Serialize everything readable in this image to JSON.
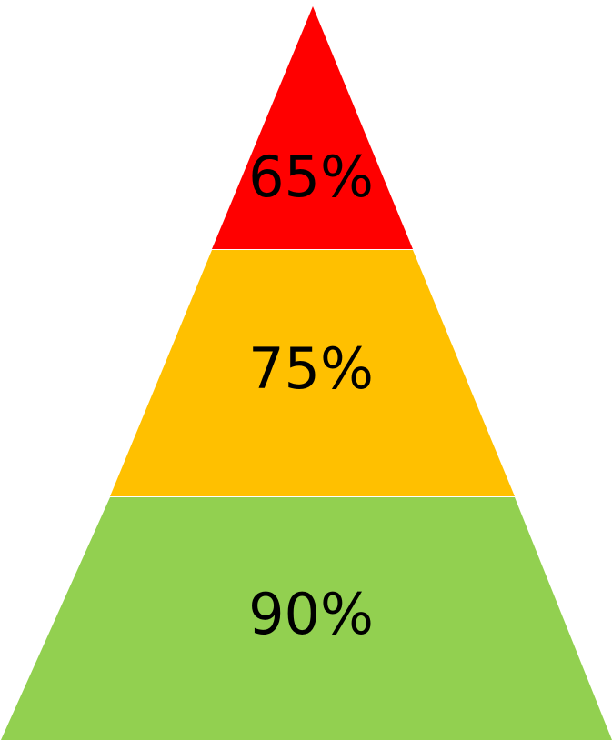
{
  "diagram": {
    "type": "pyramid",
    "tiers": [
      {
        "label": "65%",
        "color": "#ff0000"
      },
      {
        "label": "75%",
        "color": "#ffc000"
      },
      {
        "label": "90%",
        "color": "#92d050"
      }
    ]
  }
}
